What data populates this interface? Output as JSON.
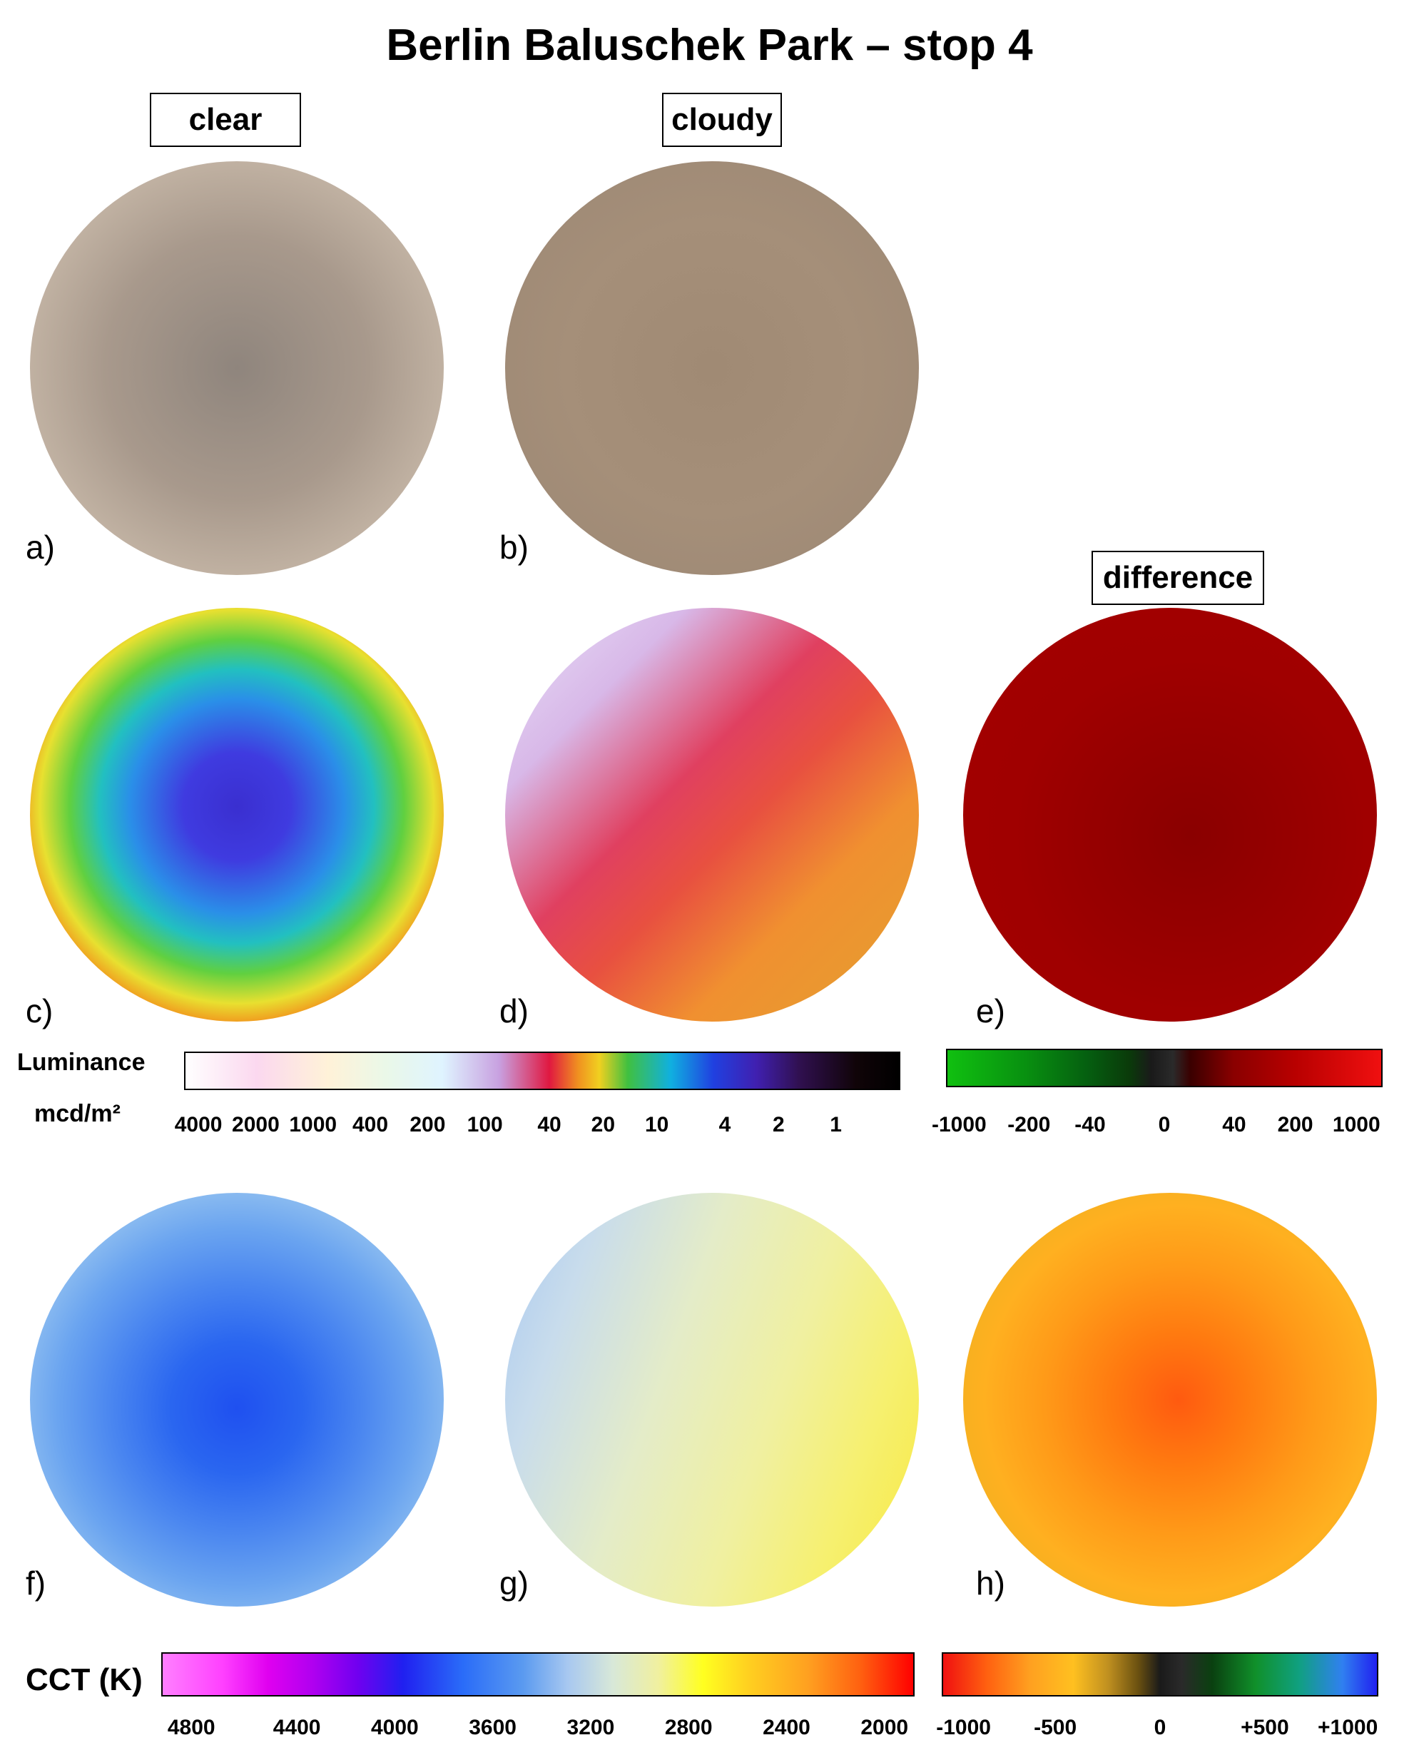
{
  "title": "Berlin Baluschek Park – stop 4",
  "labels": {
    "clear": "clear",
    "cloudy": "cloudy",
    "difference": "difference"
  },
  "panels": {
    "a": "a)",
    "b": "b)",
    "c": "c)",
    "d": "d)",
    "e": "e)",
    "f": "f)",
    "g": "g)",
    "h": "h)"
  },
  "luminance_scale": {
    "label": "Luminance",
    "unit": "mcd/m²",
    "ticks": [
      "4000",
      "2000",
      "1000",
      "400",
      "200",
      "100",
      "40",
      "20",
      "10",
      "4",
      "2",
      "1"
    ]
  },
  "difference_scale": {
    "ticks": [
      "-1000",
      "-200",
      "-40",
      "0",
      "40",
      "200",
      "1000"
    ]
  },
  "cct_scale": {
    "label": "CCT (K)",
    "ticks": [
      "4800",
      "4400",
      "4000",
      "3600",
      "3200",
      "2800",
      "2400",
      "2000"
    ]
  },
  "cct_difference_scale": {
    "ticks": [
      "-1000",
      "-500",
      "0",
      "+500",
      "+1000"
    ]
  },
  "colors": {
    "sky_clear": "#b3a69a",
    "sky_cloudy": "#a48f7a",
    "diff_red": "#a00000",
    "diff_green": "#0a8a1a"
  }
}
